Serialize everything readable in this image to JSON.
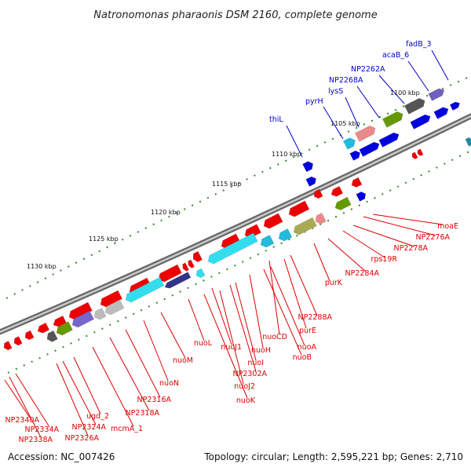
{
  "title": "Natronomonas pharaonis DSM 2160, complete genome",
  "footer": {
    "accession": "Accession: NC_007426",
    "summary": "Topology: circular; Length: 2,595,221 bp; Genes: 2,710"
  },
  "colors": {
    "forward": "#0000dd",
    "reverse": "#ee0000",
    "backbone": "#8c8c8c",
    "tick": "#2e8b2e",
    "label_forward": "#0000cc",
    "label_reverse": "#dd0000"
  },
  "kbp_labels": [
    "1100 kbp",
    "1105 kbp",
    "1110 kbp",
    "1115 kbp",
    "1120 kbp",
    "1125 kbp",
    "1130 kbp"
  ],
  "forward_labels": [
    "fadB_3",
    "acaB_6",
    "NP2262A",
    "NP2268A",
    "lysS",
    "pyrH",
    "thiL"
  ],
  "reverse_labels": [
    "moaE",
    "NP2276A",
    "NP2278A",
    "rps19R",
    "NP2284A",
    "purK",
    "NP2288A",
    "purE",
    "nuoCD",
    "nuoA",
    "nuoB",
    "nuoH",
    "nuoI",
    "NP2302A",
    "nuoJ1",
    "nuoJ2",
    "nuoK",
    "nuoL",
    "nuoM",
    "nuoN",
    "NP2316A",
    "NP2318A",
    "mcmA_1",
    "ugd_2",
    "NP2324A",
    "NP2326A",
    "NP2334A",
    "NP2338A",
    "NP2340A"
  ]
}
